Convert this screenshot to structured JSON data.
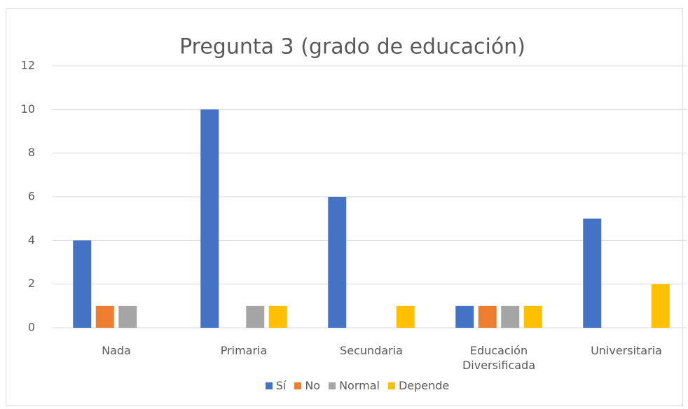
{
  "chart_data": {
    "type": "bar",
    "title": "Pregunta 3 (grado de educación)",
    "categories": [
      "Nada",
      "Primaria",
      "Secundaria",
      "Educación Diversificada",
      "Universitaria"
    ],
    "series": [
      {
        "name": "Sí",
        "color": "#4472c4",
        "values": [
          4,
          10,
          6,
          1,
          5
        ]
      },
      {
        "name": "No",
        "color": "#ed7d31",
        "values": [
          1,
          0,
          0,
          1,
          0
        ]
      },
      {
        "name": "Normal",
        "color": "#a5a5a5",
        "values": [
          1,
          1,
          0,
          1,
          0
        ]
      },
      {
        "name": "Depende",
        "color": "#ffc000",
        "values": [
          0,
          1,
          1,
          1,
          2
        ]
      }
    ],
    "ylim": [
      0,
      12
    ],
    "yticks": [
      0,
      2,
      4,
      6,
      8,
      10,
      12
    ],
    "grid": true,
    "legend": "bottom"
  }
}
